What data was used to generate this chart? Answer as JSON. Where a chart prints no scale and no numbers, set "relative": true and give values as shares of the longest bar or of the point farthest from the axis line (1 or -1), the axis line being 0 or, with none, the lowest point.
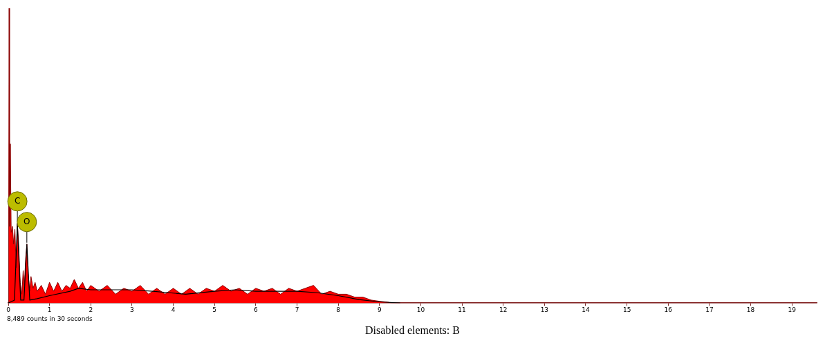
{
  "chart_data": {
    "type": "area",
    "relative": true,
    "xlim": [
      0,
      19.6
    ],
    "xticks": [
      0,
      1,
      2,
      3,
      4,
      5,
      6,
      7,
      8,
      9,
      10,
      11,
      12,
      13,
      14,
      15,
      16,
      17,
      18,
      19
    ],
    "grid": false,
    "legend": false,
    "marker": "none",
    "series": [
      {
        "color": "#ff0000",
        "x": [
          0,
          0.01,
          0.02,
          0.03,
          0.05,
          0.07,
          0.1,
          0.13,
          0.16,
          0.19,
          0.22,
          0.25,
          0.29,
          0.33,
          0.36,
          0.39,
          0.42,
          0.45,
          0.48,
          0.52,
          0.55,
          0.6,
          0.65,
          0.7,
          0.8,
          0.9,
          1.0,
          1.1,
          1.2,
          1.3,
          1.4,
          1.5,
          1.6,
          1.7,
          1.8,
          1.9,
          2.0,
          2.2,
          2.4,
          2.6,
          2.8,
          3.0,
          3.2,
          3.4,
          3.6,
          3.8,
          4.0,
          4.2,
          4.4,
          4.6,
          4.8,
          5.0,
          5.2,
          5.4,
          5.6,
          5.8,
          6.0,
          6.2,
          6.4,
          6.6,
          6.8,
          7.0,
          7.2,
          7.4,
          7.6,
          7.8,
          8.0,
          8.2,
          8.4,
          8.6,
          8.8,
          9.0,
          9.2,
          9.3,
          19.6
        ],
        "values": [
          0,
          0.3,
          1.0,
          0.26,
          0.54,
          0.24,
          0.26,
          0.2,
          0.25,
          0.12,
          0.27,
          0.2,
          0.07,
          0.03,
          0.11,
          0.06,
          0.15,
          0.2,
          0.1,
          0.04,
          0.09,
          0.05,
          0.07,
          0.04,
          0.06,
          0.03,
          0.07,
          0.04,
          0.07,
          0.04,
          0.06,
          0.05,
          0.08,
          0.05,
          0.07,
          0.04,
          0.06,
          0.04,
          0.06,
          0.03,
          0.05,
          0.04,
          0.06,
          0.03,
          0.05,
          0.03,
          0.05,
          0.03,
          0.05,
          0.03,
          0.05,
          0.04,
          0.06,
          0.04,
          0.05,
          0.03,
          0.05,
          0.04,
          0.05,
          0.03,
          0.05,
          0.04,
          0.05,
          0.06,
          0.03,
          0.04,
          0.03,
          0.03,
          0.02,
          0.02,
          0.01,
          0.006,
          0.003,
          0,
          0
        ]
      },
      {
        "type": "line",
        "color": "#000000",
        "x": [
          0,
          0.15,
          0.22,
          0.3,
          0.38,
          0.45,
          0.52,
          0.7,
          1.0,
          1.5,
          1.7,
          2.0,
          3.0,
          3.5,
          4.3,
          5.0,
          5.5,
          6.0,
          7.0,
          7.5,
          8.0,
          8.5,
          9.0,
          9.5
        ],
        "values": [
          0,
          0.01,
          0.27,
          0.01,
          0.01,
          0.2,
          0.01,
          0.015,
          0.025,
          0.04,
          0.05,
          0.045,
          0.045,
          0.04,
          0.03,
          0.04,
          0.045,
          0.04,
          0.04,
          0.035,
          0.025,
          0.012,
          0.004,
          0
        ]
      }
    ],
    "annotations": [
      {
        "text": "C",
        "x": 0.22,
        "y": 0.27
      },
      {
        "text": "O",
        "x": 0.45,
        "y": 0.2
      },
      "8,489 counts in 30 seconds",
      "Disabled elements: B"
    ]
  }
}
